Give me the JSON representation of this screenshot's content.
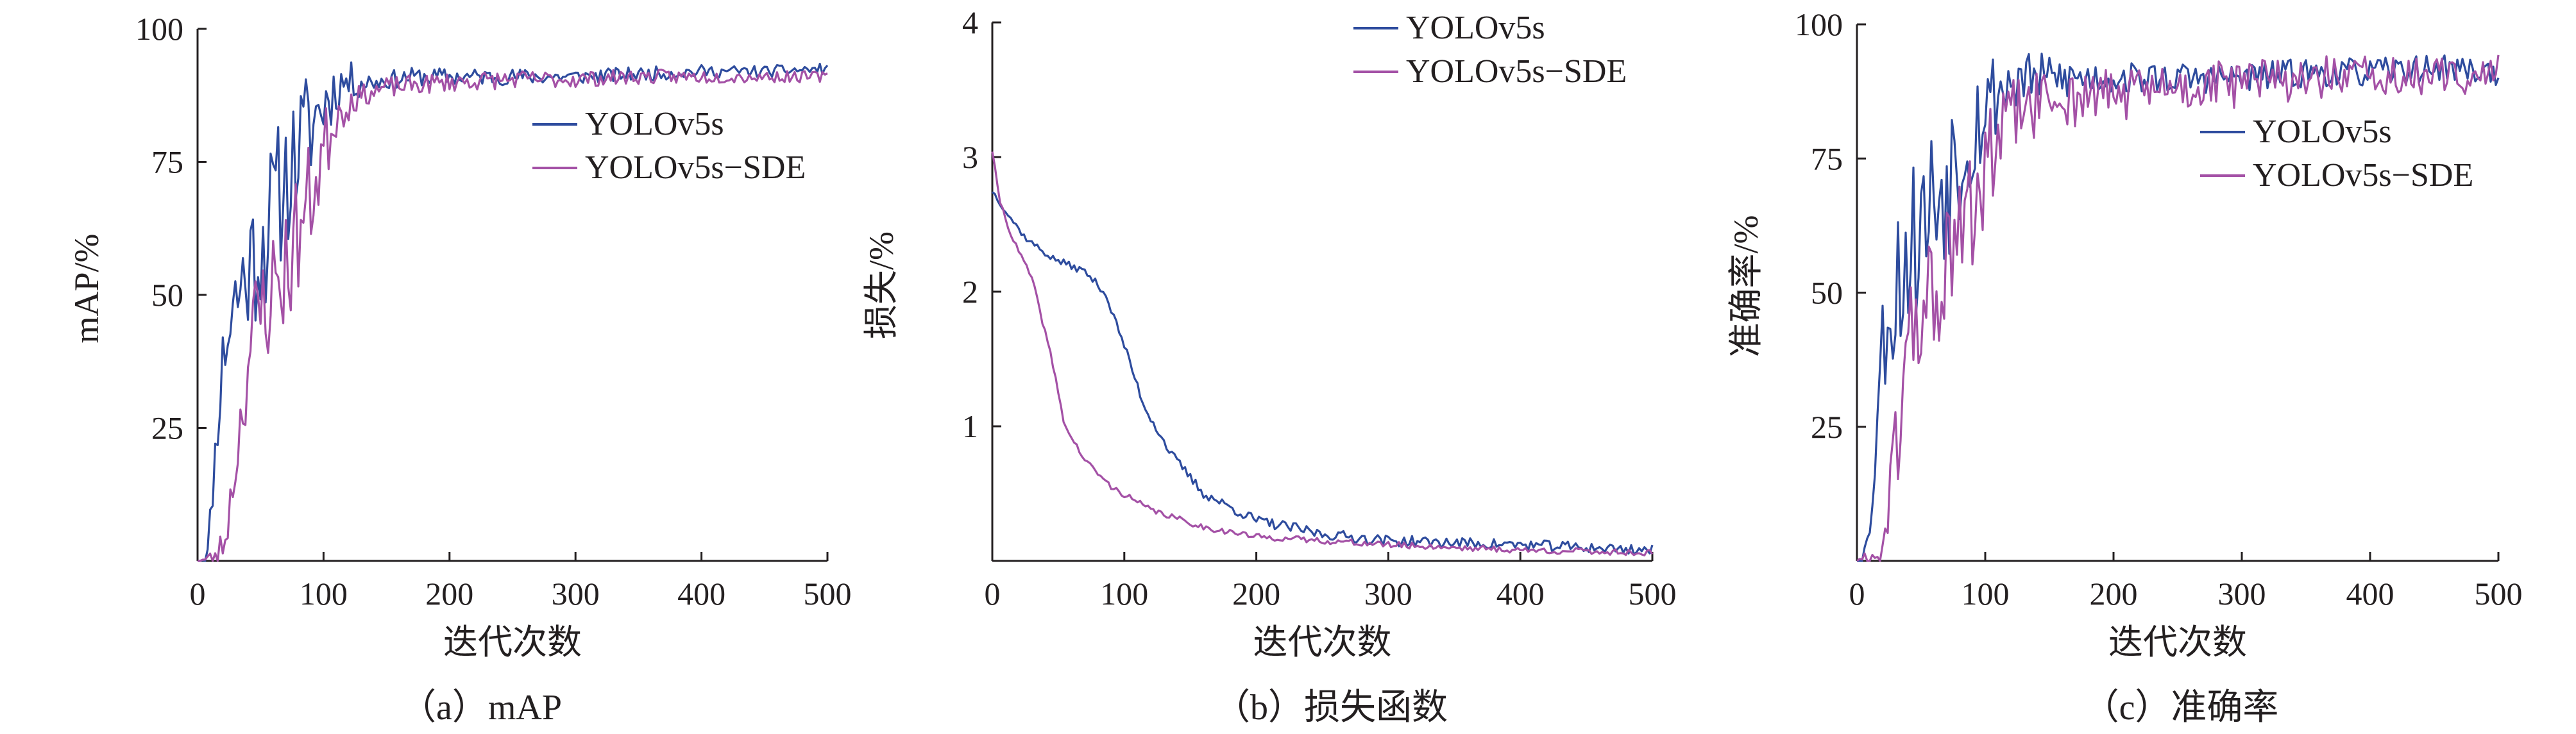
{
  "colors": {
    "yolov5s": "#2e4c9e",
    "yolov5s_sde": "#a451a6",
    "axis": "#231f20"
  },
  "chart_data": [
    {
      "type": "line",
      "caption": "（a）mAP",
      "xlabel": "迭代次数",
      "ylabel": "mAP/%",
      "xlim": [
        0,
        500
      ],
      "ylim": [
        0,
        100
      ],
      "xticks": [
        0,
        100,
        200,
        300,
        400,
        500
      ],
      "yticks": [
        25,
        50,
        75,
        100
      ],
      "grid": false,
      "legend": {
        "placement": "top-right",
        "entries": [
          "YOLOv5s",
          "YOLOv5s−SDE"
        ]
      },
      "series": [
        {
          "name": "YOLOv5s",
          "color_key": "yolov5s",
          "anchors": [
            [
              0,
              0
            ],
            [
              8,
              1
            ],
            [
              14,
              20
            ],
            [
              20,
              38
            ],
            [
              28,
              48
            ],
            [
              40,
              55
            ],
            [
              55,
              62
            ],
            [
              70,
              72
            ],
            [
              85,
              80
            ],
            [
              100,
              86
            ],
            [
              115,
              90
            ],
            [
              140,
              90
            ],
            [
              170,
              91
            ],
            [
              200,
              91
            ],
            [
              250,
              91
            ],
            [
              300,
              91
            ],
            [
              350,
              91.5
            ],
            [
              400,
              92
            ],
            [
              450,
              92
            ],
            [
              500,
              92.5
            ]
          ],
          "noise": [
            [
              0,
              0
            ],
            [
              18,
              6
            ],
            [
              30,
              12
            ],
            [
              60,
              15
            ],
            [
              90,
              11
            ],
            [
              110,
              5
            ],
            [
              140,
              1.8
            ],
            [
              500,
              1
            ]
          ],
          "seed": 11
        },
        {
          "name": "YOLOv5s−SDE",
          "color_key": "yolov5s_sde",
          "anchors": [
            [
              0,
              0
            ],
            [
              14,
              0.5
            ],
            [
              22,
              4
            ],
            [
              30,
              18
            ],
            [
              40,
              38
            ],
            [
              52,
              48
            ],
            [
              70,
              55
            ],
            [
              85,
              65
            ],
            [
              100,
              77
            ],
            [
              110,
              84
            ],
            [
              125,
              87
            ],
            [
              150,
              89
            ],
            [
              200,
              90
            ],
            [
              250,
              90.5
            ],
            [
              300,
              90.5
            ],
            [
              350,
              91
            ],
            [
              400,
              91
            ],
            [
              450,
              91
            ],
            [
              500,
              91
            ]
          ],
          "noise": [
            [
              0,
              0
            ],
            [
              25,
              4
            ],
            [
              45,
              12
            ],
            [
              70,
              13
            ],
            [
              95,
              10
            ],
            [
              110,
              5
            ],
            [
              130,
              2
            ],
            [
              500,
              1
            ]
          ],
          "seed": 23
        }
      ]
    },
    {
      "type": "line",
      "caption": "（b）损失函数",
      "xlabel": "迭代次数",
      "ylabel": "损失/%",
      "xlim": [
        0,
        500
      ],
      "ylim": [
        0,
        4
      ],
      "xticks": [
        0,
        100,
        200,
        300,
        400,
        500
      ],
      "yticks": [
        1,
        2,
        3,
        4
      ],
      "grid": false,
      "legend": {
        "placement": "top-right",
        "entries": [
          "YOLOv5s",
          "YOLOv5s−SDE"
        ]
      },
      "series": [
        {
          "name": "YOLOv5s",
          "color_key": "yolov5s",
          "anchors": [
            [
              0,
              2.75
            ],
            [
              10,
              2.6
            ],
            [
              25,
              2.4
            ],
            [
              45,
              2.25
            ],
            [
              70,
              2.15
            ],
            [
              85,
              2.0
            ],
            [
              100,
              1.6
            ],
            [
              115,
              1.15
            ],
            [
              135,
              0.8
            ],
            [
              160,
              0.5
            ],
            [
              200,
              0.3
            ],
            [
              250,
              0.2
            ],
            [
              300,
              0.15
            ],
            [
              400,
              0.12
            ],
            [
              450,
              0.1
            ],
            [
              500,
              0.08
            ]
          ],
          "noise": [
            [
              0,
              0.02
            ],
            [
              200,
              0.04
            ],
            [
              500,
              0.04
            ]
          ],
          "seed": 37
        },
        {
          "name": "YOLOv5s−SDE",
          "color_key": "yolov5s_sde",
          "anchors": [
            [
              0,
              3.05
            ],
            [
              5,
              2.7
            ],
            [
              15,
              2.4
            ],
            [
              30,
              2.1
            ],
            [
              45,
              1.5
            ],
            [
              55,
              1.0
            ],
            [
              70,
              0.75
            ],
            [
              90,
              0.55
            ],
            [
              120,
              0.38
            ],
            [
              160,
              0.25
            ],
            [
              200,
              0.18
            ],
            [
              250,
              0.15
            ],
            [
              300,
              0.12
            ],
            [
              400,
              0.08
            ],
            [
              500,
              0.06
            ]
          ],
          "noise": [
            [
              0,
              0.02
            ],
            [
              500,
              0.025
            ]
          ],
          "seed": 41
        }
      ]
    },
    {
      "type": "line",
      "caption": "（c）准确率",
      "xlabel": "迭代次数",
      "ylabel": "准确率/%",
      "xlim": [
        0,
        500
      ],
      "ylim": [
        0,
        100
      ],
      "xticks": [
        0,
        100,
        200,
        300,
        400,
        500
      ],
      "yticks": [
        25,
        50,
        75,
        100
      ],
      "grid": false,
      "legend": {
        "placement": "middle-right",
        "entries": [
          "YOLOv5s",
          "YOLOv5s−SDE"
        ]
      },
      "series": [
        {
          "name": "YOLOv5s",
          "color_key": "yolov5s",
          "anchors": [
            [
              0,
              0
            ],
            [
              8,
              2
            ],
            [
              15,
              25
            ],
            [
              22,
              45
            ],
            [
              35,
              55
            ],
            [
              55,
              65
            ],
            [
              75,
              75
            ],
            [
              95,
              83
            ],
            [
              110,
              88
            ],
            [
              130,
              90
            ],
            [
              170,
              90
            ],
            [
              200,
              90
            ],
            [
              250,
              90
            ],
            [
              300,
              90
            ],
            [
              350,
              91
            ],
            [
              400,
              91
            ],
            [
              460,
              92
            ],
            [
              500,
              91
            ]
          ],
          "noise": [
            [
              0,
              0
            ],
            [
              15,
              10
            ],
            [
              30,
              16
            ],
            [
              70,
              17
            ],
            [
              100,
              10
            ],
            [
              130,
              5
            ],
            [
              200,
              3
            ],
            [
              500,
              2.5
            ]
          ],
          "seed": 53
        },
        {
          "name": "YOLOv5s−SDE",
          "color_key": "yolov5s_sde",
          "anchors": [
            [
              0,
              0
            ],
            [
              18,
              0.5
            ],
            [
              25,
              10
            ],
            [
              35,
              30
            ],
            [
              45,
              45
            ],
            [
              60,
              50
            ],
            [
              75,
              55
            ],
            [
              90,
              65
            ],
            [
              105,
              75
            ],
            [
              120,
              83
            ],
            [
              150,
              86
            ],
            [
              200,
              87
            ],
            [
              250,
              88
            ],
            [
              300,
              89
            ],
            [
              350,
              90
            ],
            [
              400,
              90
            ],
            [
              450,
              90
            ],
            [
              500,
              91
            ]
          ],
          "noise": [
            [
              0,
              0
            ],
            [
              25,
              6
            ],
            [
              40,
              14
            ],
            [
              80,
              14
            ],
            [
              100,
              11
            ],
            [
              125,
              7
            ],
            [
              200,
              5
            ],
            [
              500,
              3.5
            ]
          ],
          "seed": 61
        }
      ]
    }
  ]
}
